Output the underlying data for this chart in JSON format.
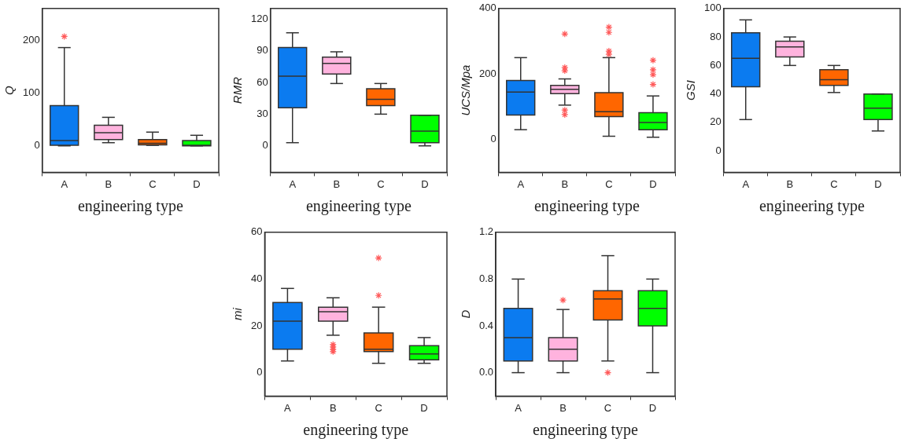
{
  "chart_data": [
    {
      "type": "box",
      "ylabel": "Q",
      "xlabel": "engineering type",
      "categories": [
        "A",
        "B",
        "C",
        "D"
      ],
      "ylim": [
        -50,
        260
      ],
      "yticks": [
        0,
        100,
        200
      ],
      "colors": [
        "#0b7bf0",
        "#ffb3de",
        "#ff6600",
        "#00ff00"
      ],
      "boxes": [
        {
          "low": 0,
          "q1": 1,
          "median": 10,
          "q3": 76,
          "high": 186,
          "mean": 42,
          "outliers": [
            207
          ]
        },
        {
          "low": 6,
          "q1": 12,
          "median": 25,
          "q3": 39,
          "high": 54,
          "mean": 26
        },
        {
          "low": 1,
          "q1": 2,
          "median": 5,
          "q3": 12,
          "high": 26,
          "mean": 8
        },
        {
          "low": 0,
          "q1": 0,
          "median": 1,
          "q3": 10,
          "high": 20,
          "mean": 5
        }
      ]
    },
    {
      "type": "box",
      "ylabel": "RMR",
      "xlabel": "engineering type",
      "categories": [
        "A",
        "B",
        "C",
        "D"
      ],
      "ylim": [
        -25,
        130
      ],
      "yticks": [
        0,
        30,
        60,
        90,
        120
      ],
      "colors": [
        "#0b7bf0",
        "#ffb3de",
        "#ff6600",
        "#00ff00"
      ],
      "boxes": [
        {
          "low": 3,
          "q1": 36,
          "median": 66,
          "q3": 93,
          "high": 107,
          "mean": 64
        },
        {
          "low": 59,
          "q1": 68,
          "median": 78,
          "q3": 84,
          "high": 89,
          "mean": 76
        },
        {
          "low": 30,
          "q1": 38,
          "median": 44,
          "q3": 54,
          "high": 59,
          "mean": 46
        },
        {
          "low": 0,
          "q1": 3,
          "median": 14,
          "q3": 29,
          "high": 29,
          "mean": 16
        }
      ]
    },
    {
      "type": "box",
      "ylabel": "UCS/Mpa",
      "xlabel": "engineering type",
      "categories": [
        "A",
        "B",
        "C",
        "D"
      ],
      "ylim": [
        -100,
        400
      ],
      "yticks": [
        0,
        200,
        400
      ],
      "colors": [
        "#0b7bf0",
        "#ffb3de",
        "#ff6600",
        "#00ff00"
      ],
      "boxes": [
        {
          "low": 30,
          "q1": 75,
          "median": 145,
          "q3": 180,
          "high": 250,
          "mean": 133
        },
        {
          "low": 105,
          "q1": 140,
          "median": 153,
          "q3": 165,
          "high": 185,
          "mean": 153,
          "outliers": [
            76,
            90,
            210,
            220,
            322
          ]
        },
        {
          "low": 10,
          "q1": 70,
          "median": 85,
          "q3": 143,
          "high": 250,
          "mean": 110,
          "outliers": [
            260,
            270,
            327,
            343
          ]
        },
        {
          "low": 7,
          "q1": 30,
          "median": 52,
          "q3": 82,
          "high": 133,
          "mean": 70,
          "outliers": [
            168,
            198,
            213,
            242
          ]
        }
      ]
    },
    {
      "type": "box",
      "ylabel": "GSI",
      "xlabel": "engineering type",
      "categories": [
        "A",
        "B",
        "C",
        "D"
      ],
      "ylim": [
        -15,
        100
      ],
      "yticks": [
        0,
        20,
        40,
        60,
        80,
        100
      ],
      "colors": [
        "#0b7bf0",
        "#ffb3de",
        "#ff6600",
        "#00ff00"
      ],
      "boxes": [
        {
          "low": 22,
          "q1": 45,
          "median": 65,
          "q3": 83,
          "high": 92,
          "mean": 64
        },
        {
          "low": 60,
          "q1": 66,
          "median": 73,
          "q3": 77,
          "high": 80,
          "mean": 72
        },
        {
          "low": 41,
          "q1": 46,
          "median": 50,
          "q3": 57,
          "high": 60,
          "mean": 51
        },
        {
          "low": 14,
          "q1": 22,
          "median": 30,
          "q3": 40,
          "high": 40,
          "mean": 31
        }
      ]
    },
    {
      "type": "box",
      "ylabel": "mi",
      "xlabel": "engineering type",
      "categories": [
        "A",
        "B",
        "C",
        "D"
      ],
      "ylim": [
        -10,
        60
      ],
      "yticks": [
        0,
        20,
        40,
        60
      ],
      "colors": [
        "#0b7bf0",
        "#ffb3de",
        "#ff6600",
        "#00ff00"
      ],
      "boxes": [
        {
          "low": 5,
          "q1": 10,
          "median": 22,
          "q3": 30,
          "high": 36,
          "mean": 21
        },
        {
          "low": 16,
          "q1": 22,
          "median": 26,
          "q3": 28,
          "high": 32,
          "mean": 24,
          "outliers": [
            9,
            10,
            11,
            12
          ]
        },
        {
          "low": 4,
          "q1": 9,
          "median": 10,
          "q3": 17,
          "high": 28,
          "mean": 13,
          "outliers": [
            33,
            49
          ]
        },
        {
          "low": 4,
          "q1": 5.5,
          "median": 8,
          "q3": 11.5,
          "high": 15,
          "mean": 8.5
        }
      ]
    },
    {
      "type": "box",
      "ylabel": "D",
      "xlabel": "engineering type",
      "categories": [
        "A",
        "B",
        "C",
        "D"
      ],
      "ylim": [
        -0.2,
        1.2
      ],
      "yticks": [
        {
          "value": 0,
          "label": "0.0"
        },
        0.4,
        0.8,
        1.2
      ],
      "colors": [
        "#0b7bf0",
        "#ffb3de",
        "#ff6600",
        "#00ff00"
      ],
      "boxes": [
        {
          "low": 0,
          "q1": 0.1,
          "median": 0.3,
          "q3": 0.55,
          "high": 0.8,
          "mean": 0.36
        },
        {
          "low": 0,
          "q1": 0.1,
          "median": 0.2,
          "q3": 0.3,
          "high": 0.54,
          "mean": 0.24,
          "outliers": [
            0.62
          ]
        },
        {
          "low": 0.1,
          "q1": 0.45,
          "median": 0.63,
          "q3": 0.7,
          "high": 1.0,
          "mean": 0.58,
          "outliers": [
            0
          ]
        },
        {
          "low": 0,
          "q1": 0.4,
          "median": 0.55,
          "q3": 0.7,
          "high": 0.8,
          "mean": 0.49
        }
      ]
    }
  ]
}
